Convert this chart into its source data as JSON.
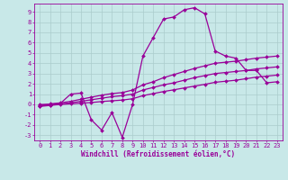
{
  "xlabel": "Windchill (Refroidissement éolien,°C)",
  "x_values": [
    0,
    1,
    2,
    3,
    4,
    5,
    6,
    7,
    8,
    9,
    10,
    11,
    12,
    13,
    14,
    15,
    16,
    17,
    18,
    19,
    20,
    21,
    22,
    23
  ],
  "line1_y": [
    0.0,
    0.0,
    0.1,
    1.0,
    1.1,
    -1.5,
    -2.5,
    -0.8,
    -3.2,
    0.0,
    4.7,
    6.5,
    8.3,
    8.5,
    9.2,
    9.4,
    8.8,
    5.2,
    4.7,
    4.5,
    3.3,
    3.3,
    2.1,
    2.2
  ],
  "line2_y": [
    -0.1,
    0.05,
    0.15,
    0.3,
    0.5,
    0.7,
    0.9,
    1.05,
    1.15,
    1.4,
    1.9,
    2.2,
    2.6,
    2.9,
    3.2,
    3.5,
    3.75,
    4.0,
    4.1,
    4.2,
    4.35,
    4.5,
    4.6,
    4.7
  ],
  "line3_y": [
    -0.15,
    -0.05,
    0.05,
    0.15,
    0.3,
    0.45,
    0.6,
    0.75,
    0.85,
    1.0,
    1.4,
    1.65,
    1.9,
    2.1,
    2.35,
    2.6,
    2.8,
    3.0,
    3.1,
    3.2,
    3.3,
    3.45,
    3.55,
    3.65
  ],
  "line4_y": [
    -0.2,
    -0.1,
    0.0,
    0.05,
    0.12,
    0.18,
    0.28,
    0.35,
    0.42,
    0.55,
    0.85,
    1.05,
    1.25,
    1.42,
    1.6,
    1.78,
    1.95,
    2.15,
    2.25,
    2.35,
    2.5,
    2.65,
    2.75,
    2.85
  ],
  "line_color": "#990099",
  "bg_color": "#c8e8e8",
  "grid_color": "#aacccc",
  "ylim": [
    -3.5,
    9.8
  ],
  "xlim": [
    -0.5,
    23.5
  ],
  "yticks": [
    -3,
    -2,
    -1,
    0,
    1,
    2,
    3,
    4,
    5,
    6,
    7,
    8,
    9
  ],
  "xticks": [
    0,
    1,
    2,
    3,
    4,
    5,
    6,
    7,
    8,
    9,
    10,
    11,
    12,
    13,
    14,
    15,
    16,
    17,
    18,
    19,
    20,
    21,
    22,
    23
  ],
  "marker": "D",
  "marker_size": 2.0,
  "line_width": 0.9,
  "xlabel_fontsize": 5.5,
  "tick_fontsize": 5.0
}
